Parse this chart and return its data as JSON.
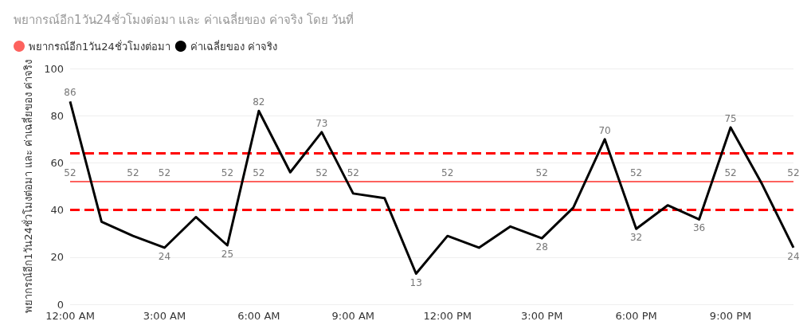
{
  "chart_data": {
    "type": "line",
    "title": "พยากรณ์อีก1วัน24ชั่วโมงต่อมา และ ค่าเฉลี่ยของ ค่าจริง โดย วันที่",
    "ylabel": "พยากรณ์อีก1วัน24ชั่วโมงต่อมา และ ค่าเฉลี่ยของ ค่าจริง",
    "x": [
      0,
      1,
      2,
      3,
      4,
      5,
      6,
      7,
      8,
      9,
      10,
      11,
      12,
      13,
      14,
      15,
      16,
      17,
      18,
      19,
      20,
      21,
      22,
      23
    ],
    "xlim": [
      0,
      23
    ],
    "xticks": [
      {
        "value": 0,
        "label": "12:00 AM"
      },
      {
        "value": 3,
        "label": "3:00 AM"
      },
      {
        "value": 6,
        "label": "6:00 AM"
      },
      {
        "value": 9,
        "label": "9:00 AM"
      },
      {
        "value": 12,
        "label": "12:00 PM"
      },
      {
        "value": 15,
        "label": "3:00 PM"
      },
      {
        "value": 18,
        "label": "6:00 PM"
      },
      {
        "value": 21,
        "label": "9:00 PM"
      }
    ],
    "ylim": [
      0,
      100
    ],
    "yticks": [
      0,
      20,
      40,
      60,
      80,
      100
    ],
    "grid": "y",
    "legend": "top left",
    "marker": "none",
    "series": [
      {
        "name": "พยากรณ์อีก1วัน24ชั่วโมงต่อมา",
        "color": "#fd625e",
        "values": [
          52,
          52,
          52,
          52,
          52,
          52,
          52,
          52,
          52,
          52,
          52,
          52,
          52,
          52,
          52,
          52,
          52,
          52,
          52,
          52,
          52,
          52,
          52,
          52
        ],
        "value_labels": [
          "52",
          null,
          "52",
          "52",
          null,
          "52",
          "52",
          null,
          "52",
          "52",
          null,
          null,
          "52",
          null,
          null,
          "52",
          null,
          null,
          "52",
          null,
          null,
          "52",
          null,
          "52"
        ]
      },
      {
        "name": "ค่าเฉลี่ยของ ค่าจริง",
        "color": "#000000",
        "values": [
          86,
          35,
          29,
          24,
          37,
          25,
          82,
          56,
          73,
          47,
          45,
          13,
          29,
          24,
          33,
          28,
          41,
          70,
          32,
          42,
          36,
          75,
          51,
          24
        ],
        "value_labels": [
          "86",
          null,
          null,
          "24",
          null,
          "25",
          "82",
          null,
          "73",
          null,
          null,
          "13",
          null,
          null,
          null,
          "28",
          null,
          "70",
          "32",
          null,
          "36",
          "75",
          null,
          "24"
        ]
      }
    ],
    "ref_lines": [
      {
        "axis": "y",
        "value": 64,
        "color": "#ff0000",
        "line_style": "dashed"
      },
      {
        "axis": "y",
        "value": 40,
        "color": "#ff0000",
        "line_style": "dashed"
      }
    ]
  }
}
